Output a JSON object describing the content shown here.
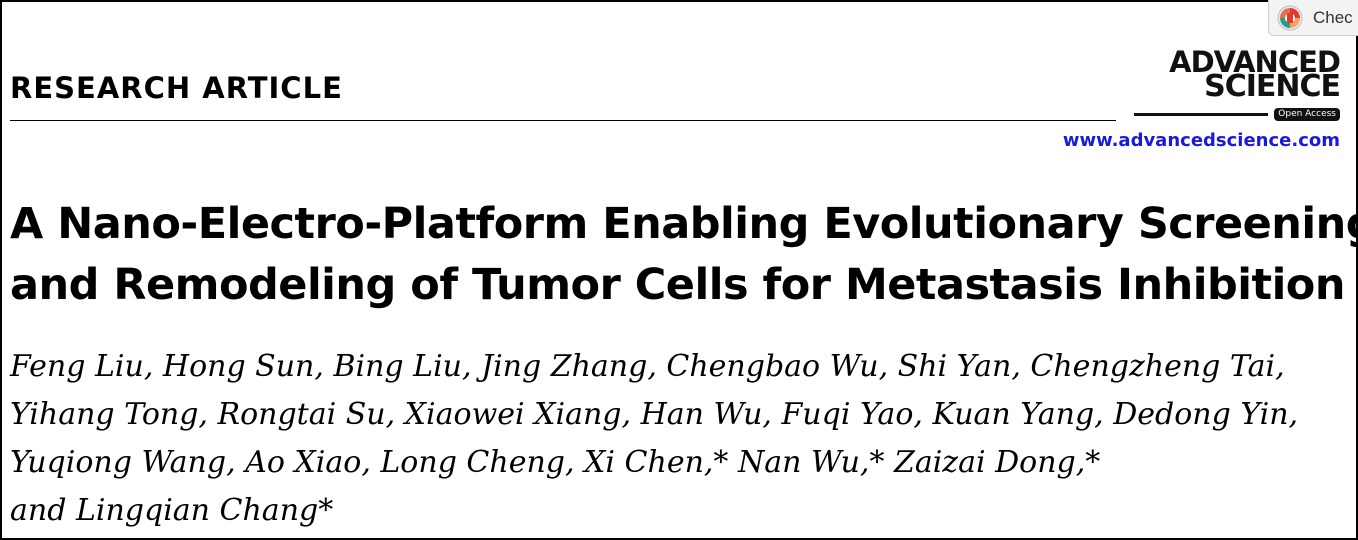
{
  "header": {
    "section_label": "RESEARCH ARTICLE",
    "journal_logo_line1": "ADVANCED",
    "journal_logo_line2": "SCIENCE",
    "open_access_label": "Open Access",
    "website_url": "www.advancedscience.com",
    "url_color": "#1a1adc"
  },
  "check_badge": {
    "label": "Chec",
    "icon": "crossmark-check-icon"
  },
  "article": {
    "title_lines": [
      "A Nano-Electro-Platform Enabling Evolutionary Screening",
      "and Remodeling of Tumor Cells for Metastasis Inhibition"
    ],
    "author_lines": [
      "Feng Liu, Hong Sun, Bing Liu, Jing Zhang, Chengbao Wu, Shi Yan, Chengzheng Tai,",
      "Yihang Tong, Rongtai Su, Xiaowei Xiang, Han Wu, Fuqi Yao, Kuan Yang, Dedong Yin,",
      "Yuqiong Wang, Ao Xiao, Long Cheng, Xi Chen,* Nan Wu,* Zaizai Dong,*",
      "and Lingqian Chang*"
    ]
  }
}
